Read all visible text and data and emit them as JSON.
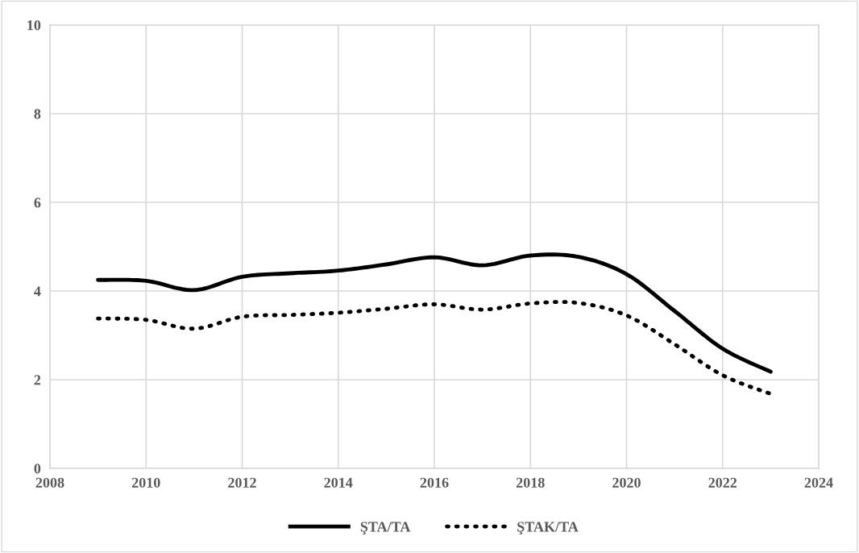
{
  "chart_data": {
    "type": "line",
    "x": [
      2009,
      2010,
      2011,
      2012,
      2013,
      2014,
      2015,
      2016,
      2017,
      2018,
      2019,
      2020,
      2021,
      2022,
      2023
    ],
    "series": [
      {
        "name": "ŞTA/TA",
        "color": "#000000",
        "line_style": "solid",
        "values": [
          4.25,
          4.23,
          4.02,
          4.32,
          4.4,
          4.46,
          4.6,
          4.76,
          4.58,
          4.8,
          4.77,
          4.38,
          3.55,
          2.7,
          2.18
        ]
      },
      {
        "name": "ŞTAK/TA",
        "color": "#000000",
        "line_style": "dotted",
        "values": [
          3.38,
          3.35,
          3.15,
          3.42,
          3.46,
          3.51,
          3.6,
          3.7,
          3.58,
          3.72,
          3.73,
          3.45,
          2.8,
          2.1,
          1.68
        ]
      }
    ],
    "xlim": [
      2008,
      2024
    ],
    "xticks": [
      2008,
      2010,
      2012,
      2014,
      2016,
      2018,
      2020,
      2022,
      2024
    ],
    "ylim": [
      0,
      10
    ],
    "yticks": [
      0,
      2,
      4,
      6,
      8,
      10
    ],
    "grid": true,
    "legend": "bottom",
    "marker": "none"
  }
}
